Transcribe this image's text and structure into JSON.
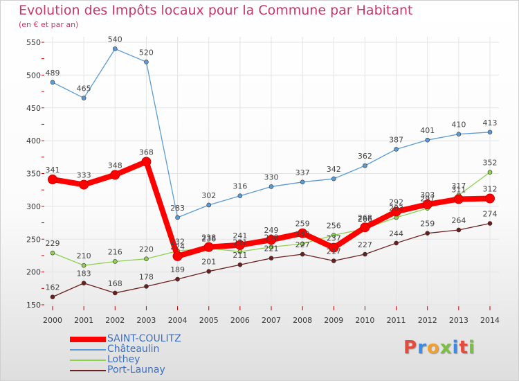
{
  "colors": {
    "title": "#c8346b",
    "grid": "#e4e4e4",
    "axis_ticks": "#cc0000",
    "label_text": "#444444",
    "legend_text": "#3a6fc4"
  },
  "logo": {
    "text": "Proxiti",
    "letter_colors": [
      "#e34b3c",
      "#3c8ae3",
      "#f0a030",
      "#7bc043",
      "#3c8ae3",
      "#e34b3c",
      "#7bc043"
    ]
  },
  "chart_data": {
    "type": "line",
    "title": "Evolution des Impôts locaux pour la Commune par Habitant",
    "subtitle": "(en € et par an)",
    "xlabel": "",
    "ylabel": "",
    "x": [
      "2000",
      "2001",
      "2002",
      "2003",
      "2004",
      "2005",
      "2006",
      "2007",
      "2008",
      "2009",
      "2010",
      "2011",
      "2012",
      "2013",
      "2014"
    ],
    "ylim": [
      150,
      550
    ],
    "yticks": [
      "150",
      "200",
      "250",
      "300",
      "350",
      "400",
      "450",
      "500",
      "550"
    ],
    "grid": true,
    "legend_position": "bottom-left",
    "series": [
      {
        "name": "Châteaulin",
        "color": "#5b9bd5",
        "values": [
          489,
          465,
          540,
          520,
          283,
          302,
          316,
          330,
          337,
          342,
          362,
          387,
          401,
          410,
          413
        ]
      },
      {
        "name": "Lothey",
        "color": "#8fd14f",
        "values": [
          229,
          210,
          216,
          220,
          232,
          236,
          231,
          238,
          243,
          256,
          266,
          283,
          297,
          317,
          352
        ]
      },
      {
        "name": "Port-Launay",
        "color": "#6b1e1e",
        "values": [
          162,
          183,
          168,
          178,
          189,
          201,
          211,
          221,
          227,
          217,
          227,
          244,
          259,
          264,
          274
        ]
      },
      {
        "name": "SAINT-COULITZ",
        "color": "#ff0000",
        "values": [
          341,
          333,
          348,
          368,
          224,
          238,
          241,
          249,
          259,
          237,
          268,
          292,
          303,
          311,
          312
        ]
      }
    ],
    "legend_order": [
      "SAINT-COULITZ",
      "Châteaulin",
      "Lothey",
      "Port-Launay"
    ]
  }
}
